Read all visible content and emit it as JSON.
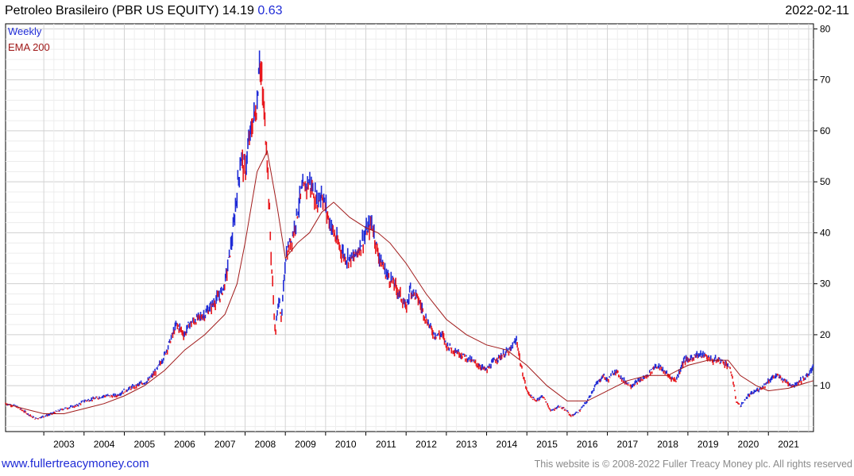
{
  "header": {
    "name": "Petroleo Brasileiro (PBR US EQUITY)",
    "price": "14.19",
    "change": "0.63",
    "date": "2022-02-11"
  },
  "footer": {
    "site": "www.fullertreacymoney.com",
    "copyright": "This website is © 2008-2022 Fuller Treacy Money plc. All rights reserved"
  },
  "colors": {
    "up": "#1f2bd6",
    "down": "#e8171c",
    "ema": "#a11a1a",
    "grid": "#d9d9d9",
    "label": "#1f2bd6"
  },
  "chart_data": {
    "type": "line",
    "title": "Petroleo Brasileiro (PBR US EQUITY) 14.19 0.63",
    "frequency": "Weekly",
    "legend": [
      "Weekly",
      "EMA 200"
    ],
    "legend_position": "top-left",
    "xlim": [
      2002.05,
      2022.12
    ],
    "ylim": [
      1,
      81
    ],
    "y_ticks": [
      10,
      20,
      30,
      40,
      50,
      60,
      70,
      80
    ],
    "x_ticks": [
      "2003",
      "2004",
      "2005",
      "2006",
      "2007",
      "2008",
      "2009",
      "2010",
      "2011",
      "2012",
      "2013",
      "2014",
      "2015",
      "2016",
      "2017",
      "2018",
      "2019",
      "2020",
      "2021"
    ],
    "grid": true,
    "y_axis_side": "right",
    "series": [
      {
        "name": "Weekly",
        "x": [
          2002.05,
          2002.3,
          2002.6,
          2002.8,
          2003.0,
          2003.2,
          2003.5,
          2003.8,
          2004.0,
          2004.3,
          2004.5,
          2004.8,
          2005.0,
          2005.3,
          2005.6,
          2005.8,
          2006.0,
          2006.2,
          2006.3,
          2006.5,
          2006.6,
          2006.8,
          2007.0,
          2007.2,
          2007.4,
          2007.5,
          2007.6,
          2007.7,
          2007.8,
          2007.9,
          2008.0,
          2008.1,
          2008.2,
          2008.3,
          2008.35,
          2008.45,
          2008.55,
          2008.65,
          2008.75,
          2008.85,
          2008.9,
          2009.0,
          2009.2,
          2009.4,
          2009.6,
          2009.8,
          2009.9,
          2010.0,
          2010.1,
          2010.3,
          2010.5,
          2010.7,
          2010.9,
          2011.0,
          2011.15,
          2011.3,
          2011.5,
          2011.7,
          2011.9,
          2012.0,
          2012.1,
          2012.3,
          2012.5,
          2012.7,
          2012.9,
          2013.0,
          2013.2,
          2013.4,
          2013.6,
          2013.8,
          2014.0,
          2014.2,
          2014.4,
          2014.6,
          2014.75,
          2014.85,
          2015.0,
          2015.2,
          2015.4,
          2015.6,
          2015.8,
          2016.0,
          2016.1,
          2016.3,
          2016.5,
          2016.7,
          2016.9,
          2017.0,
          2017.2,
          2017.4,
          2017.6,
          2017.8,
          2018.0,
          2018.2,
          2018.4,
          2018.5,
          2018.7,
          2018.9,
          2019.0,
          2019.2,
          2019.4,
          2019.6,
          2019.8,
          2020.0,
          2020.1,
          2020.2,
          2020.3,
          2020.5,
          2020.7,
          2020.9,
          2021.0,
          2021.2,
          2021.4,
          2021.6,
          2021.8,
          2022.0,
          2022.12
        ],
        "values": [
          6.5,
          6,
          4.5,
          3.5,
          4,
          4.5,
          5.5,
          6,
          7,
          7.5,
          8,
          8,
          9,
          10,
          11,
          13,
          16,
          20,
          22,
          20,
          22,
          23,
          24,
          26,
          28,
          30,
          35,
          40,
          48,
          55,
          52,
          58,
          62,
          65,
          75,
          66,
          55,
          35,
          20,
          28,
          22,
          35,
          40,
          48,
          50,
          46,
          48,
          45,
          42,
          38,
          35,
          35,
          38,
          40,
          42,
          36,
          32,
          30,
          27,
          25,
          29,
          27,
          23,
          20,
          20,
          18,
          17,
          16,
          15,
          14,
          13,
          15,
          16,
          17,
          19,
          14,
          9,
          7,
          8,
          5,
          6,
          5,
          4,
          5,
          7,
          10,
          12,
          11,
          13,
          11,
          10,
          11,
          12,
          14,
          13,
          12,
          11,
          15,
          15,
          16,
          16,
          15,
          15,
          14,
          12,
          7,
          6,
          8,
          9,
          10,
          11,
          12,
          11,
          10,
          11,
          12,
          14.19
        ]
      },
      {
        "name": "EMA 200",
        "x": [
          2002.05,
          2002.5,
          2003.0,
          2003.5,
          2004.0,
          2004.5,
          2005.0,
          2005.5,
          2006.0,
          2006.5,
          2007.0,
          2007.5,
          2007.8,
          2008.0,
          2008.3,
          2008.55,
          2008.8,
          2009.0,
          2009.3,
          2009.6,
          2009.9,
          2010.2,
          2010.6,
          2011.0,
          2011.3,
          2011.6,
          2012.0,
          2012.5,
          2013.0,
          2013.5,
          2014.0,
          2014.5,
          2015.0,
          2015.5,
          2016.0,
          2016.5,
          2017.0,
          2017.5,
          2018.0,
          2018.5,
          2019.0,
          2019.5,
          2020.0,
          2020.3,
          2020.7,
          2021.0,
          2021.5,
          2022.12
        ],
        "values": [
          6.5,
          5.5,
          4.5,
          4.5,
          5.5,
          6.5,
          8,
          10,
          13,
          17,
          20,
          24,
          30,
          38,
          52,
          56,
          45,
          35,
          38,
          40,
          44,
          46,
          43,
          41,
          40,
          38,
          34,
          28,
          23,
          20,
          18,
          17,
          14,
          10,
          7,
          7,
          9,
          11,
          12,
          12,
          14,
          15,
          15,
          12,
          10,
          9,
          9.5,
          11
        ]
      }
    ]
  }
}
